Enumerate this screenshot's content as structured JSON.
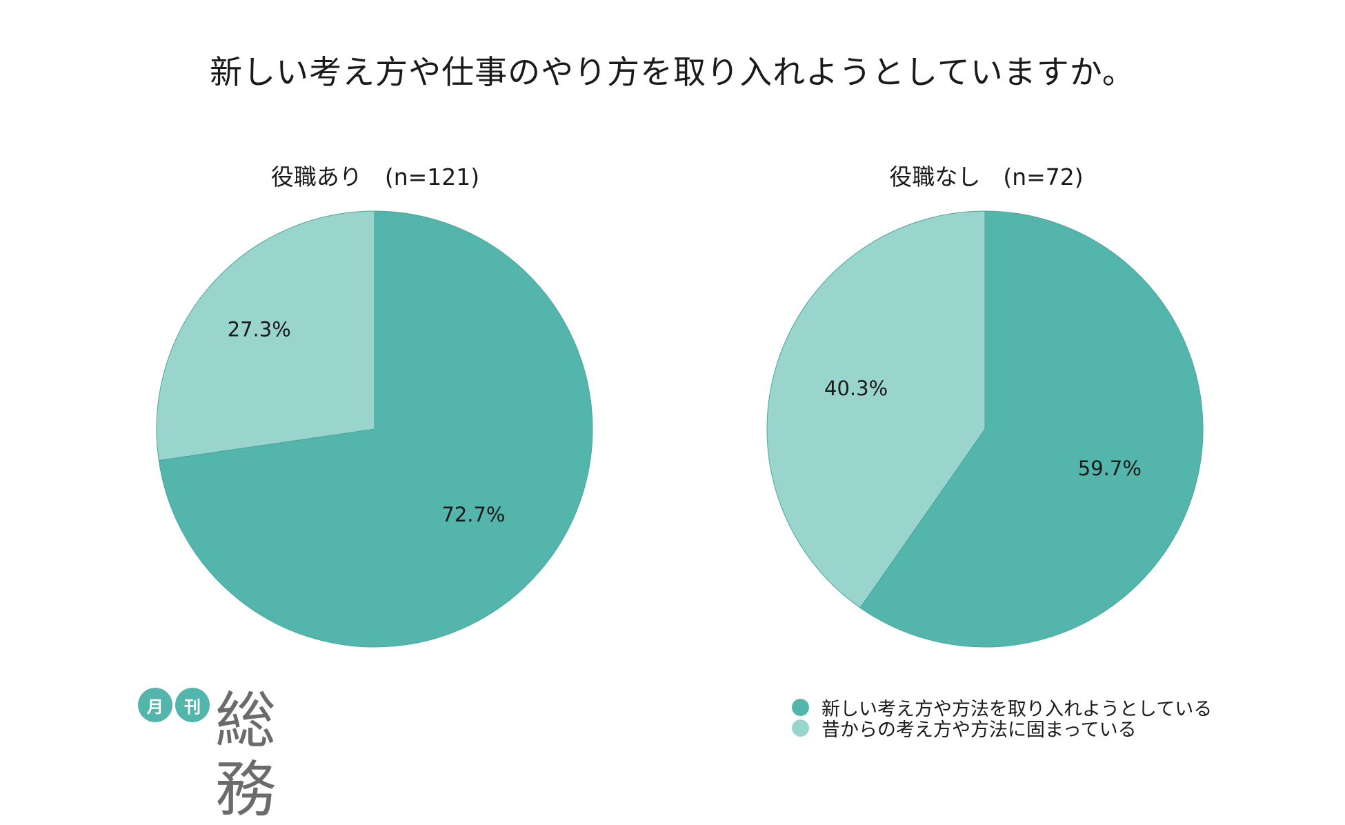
{
  "title": "新しい考え方や仕事のやり方を取り入れようとしていますか。",
  "colors": {
    "primary": "#53b5ac",
    "secondary": "#99d5cc",
    "edge": "#4aa69d"
  },
  "legend": [
    {
      "label": "新しい考え方や方法を取り入れようとしている",
      "color": "#53b5ac"
    },
    {
      "label": "昔からの考え方や方法に固まっている",
      "color": "#99d5cc"
    }
  ],
  "logo": {
    "badge1": "月",
    "badge2": "刊",
    "name": "総務"
  },
  "chart_data": [
    {
      "type": "pie",
      "title": "役職あり　(n=121)",
      "categories": [
        "新しい考え方や方法を取り入れようとしている",
        "昔からの考え方や方法に固まっている"
      ],
      "values": [
        72.7,
        27.3
      ],
      "labels": [
        "72.7%",
        "27.3%"
      ],
      "start": "12 o'clock",
      "direction": "clockwise"
    },
    {
      "type": "pie",
      "title": "役職なし　(n=72)",
      "categories": [
        "新しい考え方や方法を取り入れようとしている",
        "昔からの考え方や方法に固まっている"
      ],
      "values": [
        59.7,
        40.3
      ],
      "labels": [
        "59.7%",
        "40.3%"
      ],
      "start": "12 o'clock",
      "direction": "clockwise"
    }
  ]
}
